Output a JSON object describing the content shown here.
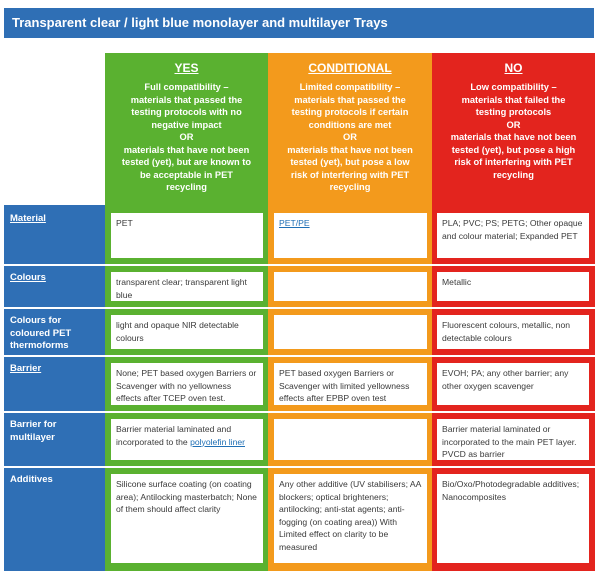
{
  "title": "Transparent clear / light blue monolayer and multilayer Trays",
  "columns": {
    "yes": {
      "title": "YES",
      "lines": [
        "Full compatibility –",
        "materials that passed the",
        "testing protocols with no",
        "negative impact",
        "OR",
        "materials that have not been",
        "tested (yet), but are known to",
        "be acceptable in PET",
        "recycling"
      ],
      "color": "#5ab130"
    },
    "conditional": {
      "title": "CONDITIONAL",
      "lines": [
        "Limited compatibility –",
        "materials that passed the",
        "testing protocols if certain",
        "conditions are met",
        "OR",
        "materials that have not been",
        "tested (yet), but pose a low",
        "risk of interfering with PET",
        "recycling"
      ],
      "color": "#f39a1c"
    },
    "no": {
      "title": "NO",
      "lines": [
        "Low compatibility –",
        "materials that failed the",
        "testing protocols",
        "OR",
        "materials that have not been",
        "tested (yet), but pose a high",
        "risk of interfering with PET",
        "recycling"
      ],
      "color": "#e3241e"
    }
  },
  "rows": [
    {
      "label": "Material",
      "yes": "PET",
      "conditional": "PET/PE",
      "no": "PLA; PVC; PS; PETG; Other opaque and colour material; Expanded PET"
    },
    {
      "label": "Colours",
      "yes": "transparent clear; transparent light blue",
      "conditional": "",
      "no": "Metallic"
    },
    {
      "label": "Colours for coloured PET thermoforms",
      "yes": "light and opaque NIR detectable colours",
      "conditional": "",
      "no": "Fluorescent colours, metallic, non detectable colours"
    },
    {
      "label": "Barrier",
      "yes": "None; PET based oxygen Barriers or Scavenger with no yellowness effects after TCEP oven test.",
      "conditional": "PET based oxygen Barriers or Scavenger with limited yellowness effects after EPBP oven test",
      "no": "EVOH; PA; any other barrier; any other oxygen scavenger"
    },
    {
      "label": "Barrier for multilayer",
      "yes_prefix": "Barrier material laminated and incorporated to the ",
      "yes_link": "polyolefin liner",
      "conditional": "",
      "no": "Barrier material laminated or incorporated to the main PET layer. PVCD as barrier"
    },
    {
      "label": "Additives",
      "yes": "Silicone surface coating (on coating area); Antilocking masterbatch; None of them should affect clarity",
      "conditional": "Any other additive (UV stabilisers; AA blockers; optical brighteners; antilocking; anti-stat agents; anti-fogging (on coating area)) With Limited effect on clarity to be measured",
      "no": "Bio/Oxo/Photodegradable additives; Nanocomposites"
    }
  ]
}
